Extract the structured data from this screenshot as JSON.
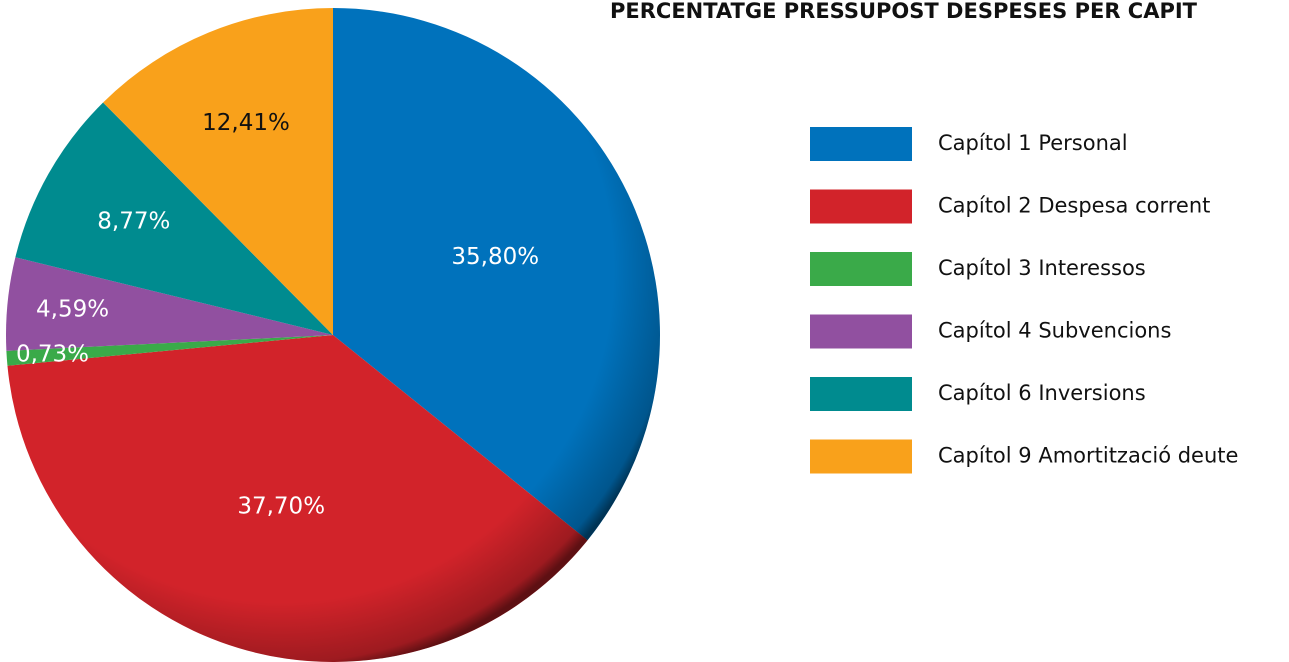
{
  "chart_data": {
    "type": "pie",
    "title": "PERCENTATGE PRESSUPOST  DESPESES PER CAPIT",
    "categories": [
      "Capítol 1 Personal",
      "Capítol 2 Despesa corrent",
      "Capítol 3 Interessos",
      "Capítol 4 Subvencions",
      "Capítol 6 Inversions",
      "Capítol 9 Amortització deute"
    ],
    "values": [
      35.8,
      37.7,
      0.73,
      4.59,
      8.77,
      12.41
    ],
    "value_labels": [
      "35,80%",
      "37,70%",
      "0,73%",
      "4,59%",
      "8,77%",
      "12,41%"
    ],
    "colors": [
      "#0072bc",
      "#d2232a",
      "#3aaa49",
      "#9150a0",
      "#008b8f",
      "#f9a11b"
    ],
    "label_colors": [
      "#ffffff",
      "#ffffff",
      "#ffffff",
      "#ffffff",
      "#ffffff",
      "#111111"
    ],
    "legend": "right"
  }
}
